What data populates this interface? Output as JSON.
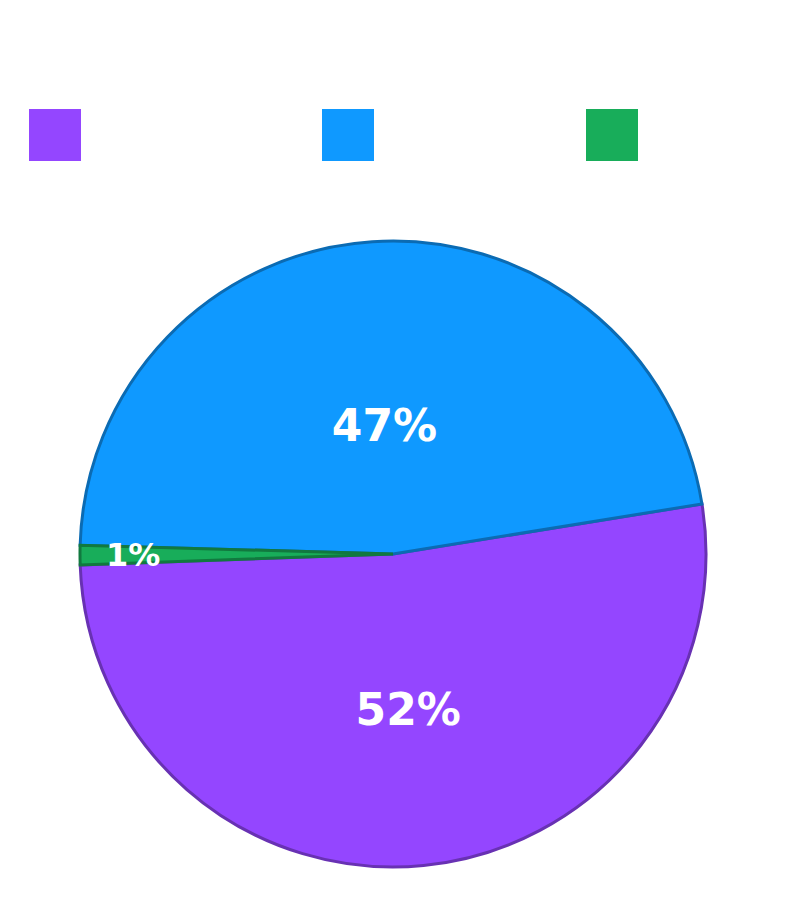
{
  "chart_data": {
    "type": "pie",
    "values": [
      52,
      47,
      1
    ],
    "value_labels": [
      "52%",
      "47%",
      "1%"
    ],
    "colors": [
      "#9446ff",
      "#0f99ff",
      "#18ad5a"
    ],
    "data_labels": true,
    "legend": "top"
  }
}
